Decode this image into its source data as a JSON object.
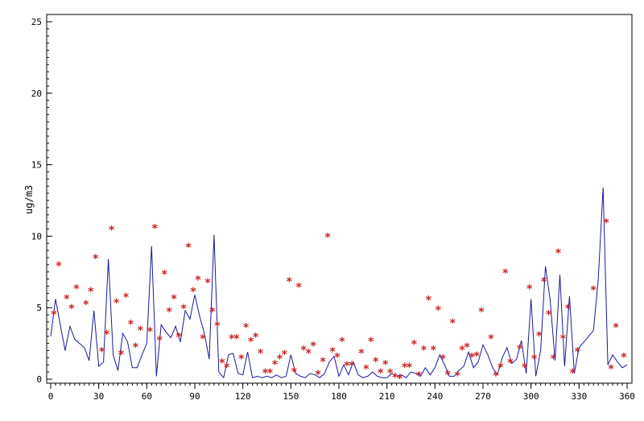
{
  "chart_data": {
    "type": "line",
    "title": "",
    "xlabel": "",
    "ylabel": "ug/m3",
    "xlim": [
      0,
      360
    ],
    "ylim": [
      0,
      25
    ],
    "x_ticks": [
      0,
      30,
      60,
      90,
      120,
      150,
      180,
      210,
      240,
      270,
      300,
      330,
      360
    ],
    "y_ticks": [
      0,
      5,
      10,
      15,
      20,
      25
    ],
    "grid": false,
    "legend": "none",
    "series": [
      {
        "type": "line",
        "color": "#1a1a9e",
        "x": [
          0,
          3,
          6,
          9,
          12,
          15,
          18,
          21,
          24,
          27,
          30,
          33,
          36,
          39,
          42,
          45,
          48,
          51,
          54,
          57,
          60,
          63,
          66,
          69,
          72,
          75,
          78,
          81,
          84,
          87,
          90,
          93,
          96,
          99,
          102,
          105,
          108,
          111,
          114,
          117,
          120,
          123,
          126,
          129,
          132,
          135,
          138,
          141,
          144,
          147,
          150,
          153,
          156,
          159,
          162,
          165,
          168,
          171,
          174,
          177,
          180,
          183,
          186,
          189,
          192,
          195,
          198,
          201,
          204,
          207,
          210,
          213,
          216,
          219,
          222,
          225,
          228,
          231,
          234,
          237,
          240,
          243,
          246,
          249,
          252,
          255,
          258,
          261,
          264,
          267,
          270,
          273,
          276,
          279,
          282,
          285,
          288,
          291,
          294,
          297,
          300,
          303,
          306,
          309,
          312,
          315,
          318,
          321,
          324,
          327,
          330,
          333,
          336,
          339,
          342,
          345,
          348,
          351,
          354,
          357,
          360
        ],
        "y": [
          3.0,
          5.6,
          3.8,
          2.0,
          3.7,
          2.8,
          2.5,
          2.2,
          1.3,
          4.8,
          0.9,
          1.2,
          8.4,
          1.7,
          0.6,
          3.2,
          2.6,
          0.8,
          0.8,
          1.7,
          2.5,
          9.3,
          0.2,
          3.8,
          3.3,
          2.9,
          3.7,
          2.6,
          4.8,
          4.2,
          5.9,
          4.4,
          3.2,
          1.4,
          10.1,
          0.5,
          0.1,
          1.7,
          1.8,
          0.4,
          0.3,
          1.9,
          0.1,
          0.2,
          0.1,
          0.2,
          0.1,
          0.3,
          0.1,
          0.2,
          1.7,
          0.4,
          0.2,
          0.1,
          0.4,
          0.3,
          0.1,
          0.4,
          1.2,
          1.6,
          0.2,
          1.0,
          0.3,
          1.2,
          0.3,
          0.1,
          0.2,
          0.5,
          0.2,
          0.1,
          0.1,
          0.4,
          0.2,
          0.3,
          0.1,
          0.5,
          0.4,
          0.2,
          0.8,
          0.3,
          0.8,
          1.7,
          1.0,
          0.2,
          0.2,
          0.6,
          0.9,
          1.9,
          0.8,
          1.2,
          2.4,
          1.7,
          0.8,
          0.3,
          1.5,
          2.2,
          1.1,
          1.4,
          2.7,
          0.4,
          5.6,
          0.2,
          2.0,
          7.9,
          5.5,
          1.3,
          7.3,
          0.9,
          5.8,
          0.4,
          2.2,
          2.6,
          3.0,
          3.4,
          7.0,
          13.4,
          1.0,
          1.7,
          1.2,
          0.8,
          1.0
        ]
      },
      {
        "type": "scatter",
        "marker": "asterisk",
        "color": "#cc2222",
        "x": [
          2,
          5,
          10,
          13,
          16,
          22,
          25,
          28,
          32,
          35,
          38,
          41,
          44,
          47,
          50,
          53,
          56,
          62,
          65,
          68,
          71,
          74,
          77,
          80,
          83,
          86,
          89,
          92,
          95,
          98,
          101,
          104,
          107,
          110,
          113,
          116,
          119,
          122,
          125,
          128,
          131,
          134,
          137,
          140,
          143,
          146,
          149,
          152,
          155,
          158,
          161,
          164,
          167,
          170,
          173,
          176,
          179,
          182,
          185,
          188,
          194,
          197,
          200,
          203,
          206,
          209,
          212,
          215,
          218,
          221,
          224,
          227,
          230,
          233,
          236,
          239,
          242,
          245,
          248,
          251,
          254,
          257,
          260,
          263,
          266,
          269,
          275,
          278,
          281,
          284,
          287,
          293,
          296,
          299,
          302,
          305,
          308,
          311,
          314,
          317,
          320,
          323,
          326,
          329,
          339,
          347,
          350,
          353,
          358
        ],
        "y": [
          4.6,
          8.0,
          5.7,
          5.0,
          6.4,
          5.3,
          6.2,
          8.5,
          2.0,
          3.2,
          10.5,
          5.4,
          1.8,
          5.8,
          3.9,
          2.3,
          3.5,
          3.4,
          10.6,
          2.8,
          7.4,
          4.8,
          5.7,
          3.0,
          5.0,
          9.3,
          6.2,
          7.0,
          2.9,
          6.8,
          4.8,
          3.8,
          1.2,
          0.9,
          2.9,
          2.9,
          1.5,
          3.7,
          2.7,
          3.0,
          1.9,
          0.5,
          0.5,
          1.1,
          1.5,
          1.8,
          6.9,
          0.6,
          6.5,
          2.1,
          1.9,
          2.4,
          0.4,
          1.3,
          10.0,
          2.0,
          1.6,
          2.7,
          1.0,
          1.0,
          1.9,
          0.8,
          2.7,
          1.3,
          0.5,
          1.1,
          0.5,
          0.2,
          0.1,
          0.9,
          0.9,
          2.5,
          0.3,
          2.1,
          5.6,
          2.1,
          4.9,
          1.5,
          0.4,
          4.0,
          0.3,
          2.1,
          2.3,
          1.6,
          1.7,
          4.8,
          2.9,
          0.3,
          0.9,
          7.5,
          1.2,
          2.2,
          0.9,
          6.4,
          1.5,
          3.1,
          6.9,
          4.6,
          1.5,
          8.9,
          2.9,
          5.0,
          0.5,
          2.0,
          6.3,
          11.0,
          0.8,
          3.7,
          1.6
        ]
      }
    ]
  }
}
